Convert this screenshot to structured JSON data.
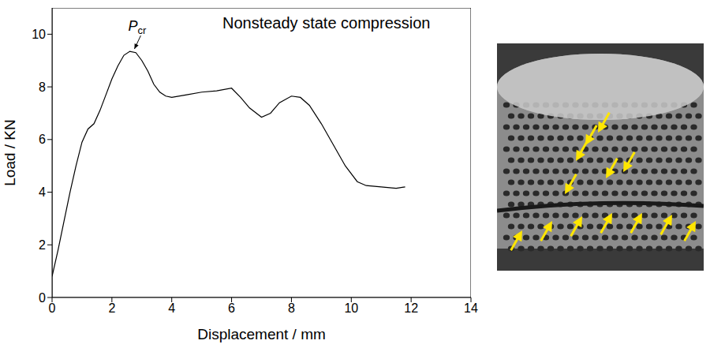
{
  "chart_data": {
    "type": "line",
    "title": "Nonsteady state compression",
    "x_label": "Displacement / mm",
    "y_label": "Load / KN",
    "x": [
      0,
      0.2,
      0.4,
      0.6,
      0.8,
      1.0,
      1.2,
      1.4,
      1.6,
      1.8,
      2.0,
      2.2,
      2.4,
      2.6,
      2.8,
      3.0,
      3.2,
      3.4,
      3.6,
      3.8,
      4.0,
      4.5,
      5.0,
      5.5,
      6.0,
      6.3,
      6.6,
      7.0,
      7.3,
      7.6,
      8.0,
      8.3,
      8.6,
      9.0,
      9.4,
      9.8,
      10.2,
      10.5,
      11.0,
      11.5,
      11.8
    ],
    "values": [
      0.8,
      1.8,
      2.9,
      4.0,
      5.0,
      5.9,
      6.4,
      6.6,
      7.1,
      7.7,
      8.3,
      8.8,
      9.2,
      9.35,
      9.3,
      9.0,
      8.6,
      8.1,
      7.8,
      7.65,
      7.6,
      7.7,
      7.8,
      7.85,
      7.95,
      7.6,
      7.2,
      6.85,
      7.0,
      7.4,
      7.65,
      7.6,
      7.3,
      6.6,
      5.8,
      5.0,
      4.4,
      4.25,
      4.2,
      4.15,
      4.2
    ],
    "color": "#000000",
    "xlim": [
      0,
      14
    ],
    "xticks": [
      0,
      2,
      4,
      6,
      8,
      10,
      12,
      14
    ],
    "ylim": [
      0,
      11
    ],
    "yticks": [
      0,
      2,
      4,
      6,
      8,
      10
    ],
    "grid": false,
    "annotations": [
      {
        "text": "P",
        "subscript": "cr",
        "x": 2.7,
        "y": 9.35
      }
    ]
  }
}
